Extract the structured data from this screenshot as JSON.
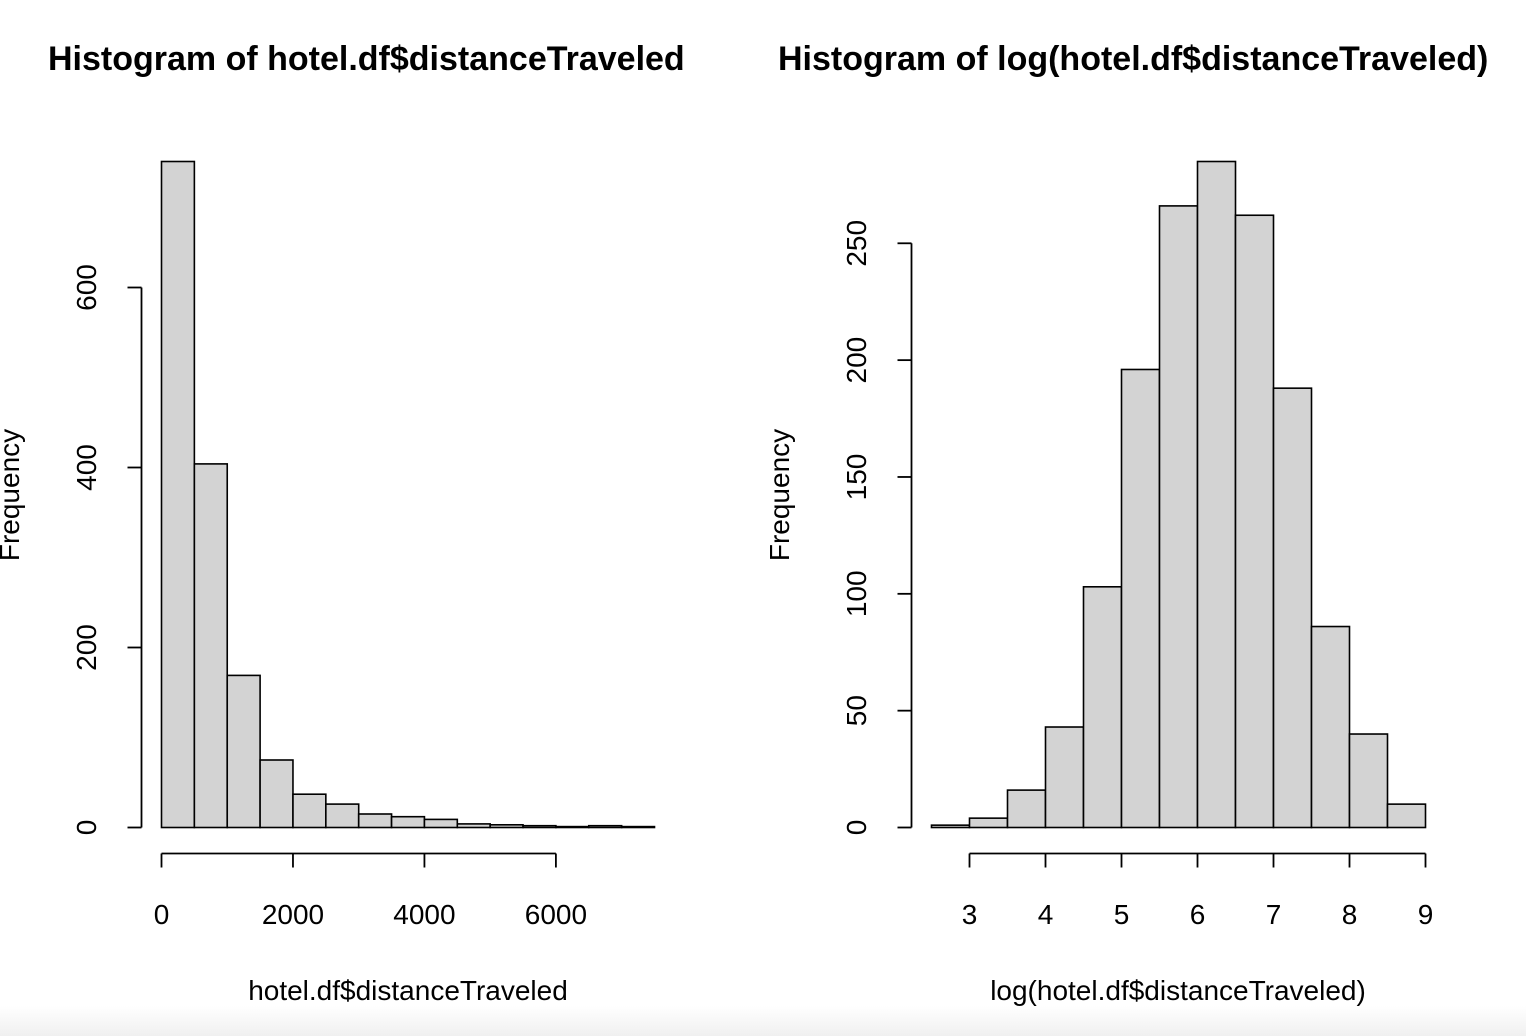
{
  "chart_data": [
    {
      "type": "bar",
      "title": "Histogram of hotel.df$distanceTraveled",
      "xlabel": "hotel.df$distanceTraveled",
      "ylabel": "Frequency",
      "bin_edges": [
        0,
        500,
        1000,
        1500,
        2000,
        2500,
        3000,
        3500,
        4000,
        4500,
        5000,
        5500,
        6000,
        6500,
        7000,
        7500
      ],
      "values": [
        740,
        404,
        169,
        75,
        37,
        26,
        15,
        12,
        9,
        4,
        3,
        2,
        1,
        2,
        1
      ],
      "xticks": [
        0,
        2000,
        4000,
        6000
      ],
      "xtick_labels": [
        "0",
        "2000",
        "4000",
        "6000"
      ],
      "yticks": [
        0,
        200,
        400,
        600
      ],
      "ytick_labels": [
        "0",
        "200",
        "400",
        "600"
      ],
      "xlim": [
        0,
        7500
      ],
      "ylim": [
        0,
        740
      ],
      "grid": false
    },
    {
      "type": "bar",
      "title": "Histogram of log(hotel.df$distanceTraveled)",
      "xlabel": "log(hotel.df$distanceTraveled)",
      "ylabel": "Frequency",
      "bin_edges": [
        2.5,
        3.0,
        3.5,
        4.0,
        4.5,
        5.0,
        5.5,
        6.0,
        6.5,
        7.0,
        7.5,
        8.0,
        8.5,
        9.0
      ],
      "values": [
        1,
        4,
        16,
        43,
        103,
        196,
        266,
        285,
        262,
        188,
        86,
        40,
        10
      ],
      "xticks": [
        3,
        4,
        5,
        6,
        7,
        8,
        9
      ],
      "xtick_labels": [
        "3",
        "4",
        "5",
        "6",
        "7",
        "8",
        "9"
      ],
      "yticks": [
        0,
        50,
        100,
        150,
        200,
        250
      ],
      "ytick_labels": [
        "0",
        "50",
        "100",
        "150",
        "200",
        "250"
      ],
      "xlim": [
        2.5,
        9.0
      ],
      "ylim": [
        0,
        285
      ],
      "grid": false
    }
  ]
}
